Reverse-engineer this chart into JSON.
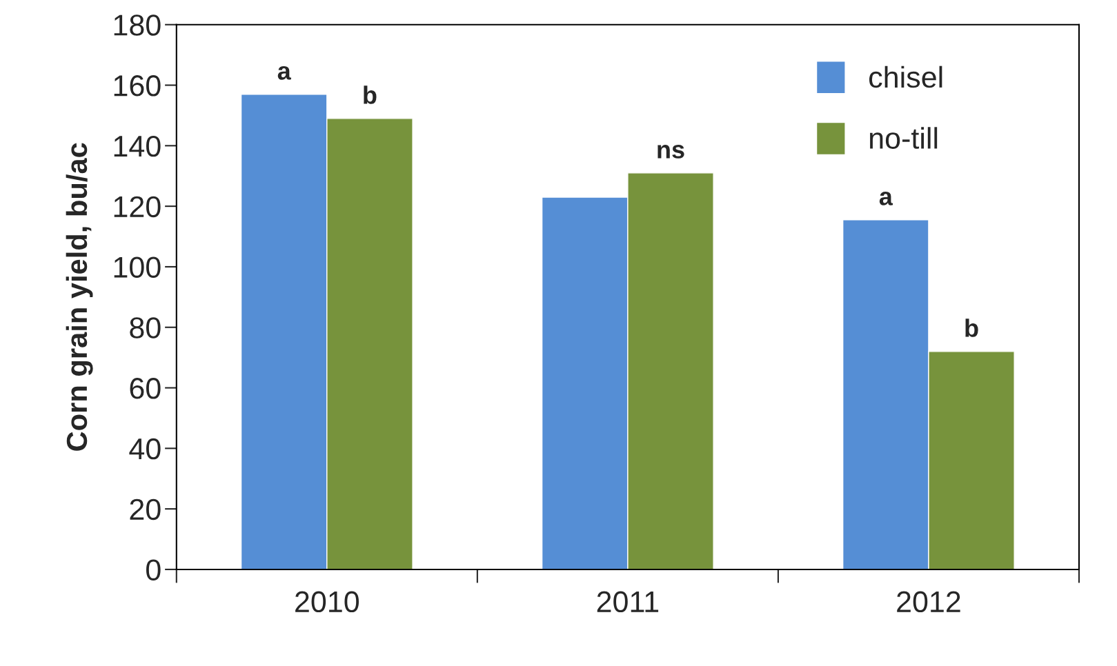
{
  "chart_data": {
    "type": "bar",
    "ylabel": "Corn grain yield, bu/ac",
    "categories": [
      "2010",
      "2011",
      "2012"
    ],
    "series": [
      {
        "name": "chisel",
        "color": "#558ed5",
        "values": [
          157,
          123,
          115.5
        ]
      },
      {
        "name": "no-till",
        "color": "#77933c",
        "values": [
          149,
          131,
          72
        ]
      }
    ],
    "ylim": [
      0,
      180
    ],
    "yticks": [
      0,
      20,
      40,
      60,
      80,
      100,
      120,
      140,
      160,
      180
    ],
    "grid": false,
    "legend": "top right",
    "annotations": [
      {
        "text": "a",
        "x": "2010",
        "y": 157
      },
      {
        "text": "b",
        "x": "2010",
        "y": 149
      },
      {
        "text": "ns",
        "x": "2011",
        "y": 131
      },
      {
        "text": "a",
        "x": "2012",
        "y": 115.5
      },
      {
        "text": "b",
        "x": "2012",
        "y": 72
      }
    ]
  }
}
